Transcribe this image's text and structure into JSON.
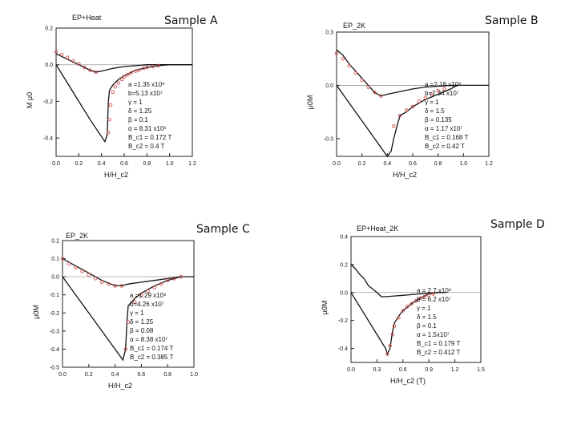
{
  "chart_data": [
    {
      "type": "line",
      "sample_label": "Sample A",
      "corner_title": "EP+Heat",
      "xlabel": "H/H_c2",
      "ylabel": "M μ0",
      "xlim": [
        0.0,
        1.2
      ],
      "ylim": [
        -0.5,
        0.2
      ],
      "xticks": [
        "0.0",
        "0.2",
        "0.4",
        "0.6",
        "0.8",
        "1.0",
        "1.2"
      ],
      "yticks": [
        "0.2",
        "0.0",
        "-0.2",
        "-0.4"
      ],
      "params": [
        "a =1.35 x10⁹",
        "b=5.13 x10⁷",
        "γ = 1",
        "δ = 1.25",
        "β = 0.1",
        "α = 8.31 x10⁶",
        "B_c1 = 0.172 T",
        "B_c2 = 0.4 T"
      ],
      "series": [
        {
          "style": "line",
          "x": [
            0.0,
            0.1,
            0.2,
            0.3,
            0.35,
            0.4,
            0.5,
            0.6,
            0.7,
            0.8,
            0.9,
            1.0,
            1.1,
            1.2
          ],
          "y": [
            0.06,
            0.03,
            0.0,
            -0.03,
            -0.04,
            -0.035,
            -0.02,
            -0.01,
            -0.005,
            0.0,
            0.0,
            0.0,
            0.0,
            0.0
          ]
        },
        {
          "style": "line",
          "x": [
            0.0,
            0.1,
            0.2,
            0.3,
            0.43,
            0.45,
            0.46,
            0.47,
            0.5,
            0.55,
            0.6,
            0.7,
            0.8,
            0.9,
            1.0,
            1.1,
            1.2
          ],
          "y": [
            0.0,
            -0.1,
            -0.2,
            -0.3,
            -0.42,
            -0.38,
            -0.2,
            -0.14,
            -0.11,
            -0.08,
            -0.06,
            -0.03,
            -0.015,
            -0.005,
            0.0,
            0.0,
            0.0
          ]
        },
        {
          "style": "markers",
          "x": [
            0.0,
            0.05,
            0.1,
            0.15,
            0.2,
            0.25,
            0.3,
            0.35,
            0.46,
            0.47,
            0.48,
            0.5,
            0.52,
            0.55,
            0.58,
            0.6,
            0.63,
            0.66,
            0.7,
            0.73,
            0.77,
            0.8,
            0.85,
            0.9
          ],
          "y": [
            0.07,
            0.055,
            0.04,
            0.02,
            0.005,
            -0.015,
            -0.03,
            -0.04,
            -0.37,
            -0.3,
            -0.22,
            -0.15,
            -0.12,
            -0.1,
            -0.08,
            -0.065,
            -0.055,
            -0.045,
            -0.035,
            -0.03,
            -0.02,
            -0.015,
            -0.01,
            -0.005
          ]
        }
      ]
    },
    {
      "type": "line",
      "sample_label": "Sample B",
      "corner_title": "EP_2K",
      "xlabel": "H/H_c2",
      "ylabel": "μ0M",
      "xlim": [
        0.0,
        1.2
      ],
      "ylim": [
        -0.4,
        0.3
      ],
      "xticks": [
        "0.0",
        "0.2",
        "0.4",
        "0.6",
        "0.8",
        "1.0",
        "1.2"
      ],
      "yticks": [
        "0.3",
        "0.0",
        "-0.3"
      ],
      "params": [
        "a =2.18 x10⁹",
        "b=7.34 x10⁷",
        "γ = 1",
        "δ = 1.5",
        "β = 0.135",
        "α = 1.17 x10⁷",
        "B_c1 = 0.168 T",
        "B_c2 = 0.42 T"
      ],
      "series": [
        {
          "style": "line",
          "x": [
            0.0,
            0.05,
            0.1,
            0.15,
            0.2,
            0.25,
            0.3,
            0.35,
            0.4,
            0.5,
            0.6,
            0.7,
            0.8,
            0.9,
            1.0,
            1.2
          ],
          "y": [
            0.2,
            0.17,
            0.12,
            0.08,
            0.04,
            0.0,
            -0.04,
            -0.06,
            -0.05,
            -0.035,
            -0.02,
            -0.01,
            -0.005,
            0.0,
            0.0,
            0.0
          ]
        },
        {
          "style": "line",
          "x": [
            0.0,
            0.1,
            0.2,
            0.3,
            0.4,
            0.43,
            0.45,
            0.48,
            0.5,
            0.55,
            0.6,
            0.7,
            0.8,
            0.9,
            0.95
          ],
          "y": [
            0.0,
            -0.1,
            -0.2,
            -0.3,
            -0.4,
            -0.37,
            -0.3,
            -0.22,
            -0.17,
            -0.15,
            -0.12,
            -0.08,
            -0.05,
            -0.02,
            0.0
          ]
        },
        {
          "style": "markers",
          "x": [
            0.0,
            0.05,
            0.1,
            0.15,
            0.2,
            0.25,
            0.3,
            0.35,
            0.45,
            0.5,
            0.55,
            0.6,
            0.65,
            0.7,
            0.75,
            0.8,
            0.85
          ],
          "y": [
            0.18,
            0.15,
            0.11,
            0.07,
            0.03,
            -0.01,
            -0.04,
            -0.06,
            -0.23,
            -0.17,
            -0.14,
            -0.12,
            -0.09,
            -0.07,
            -0.05,
            -0.03,
            -0.02
          ]
        }
      ]
    },
    {
      "type": "line",
      "sample_label": "Sample C",
      "corner_title": "EP_2K",
      "xlabel": "H/H_c2",
      "ylabel": "μ0M",
      "xlim": [
        0.0,
        1.0
      ],
      "ylim": [
        -0.5,
        0.2
      ],
      "xticks": [
        "0.0",
        "0.2",
        "0.4",
        "0.6",
        "0.8",
        "1.0"
      ],
      "yticks": [
        "0.2",
        "0.1",
        "0.0",
        "-0.1",
        "-0.2",
        "-0.3",
        "-0.4",
        "-0.5"
      ],
      "params": [
        "a =1.29 x10⁹",
        "b=4.26 x10⁷",
        "γ = 1",
        "δ = 1.25",
        "β = 0.08",
        "α = 8.38 x10⁷",
        "B_c1 = 0.174 T",
        "B_c2 = 0.385 T"
      ],
      "series": [
        {
          "style": "line",
          "x": [
            0.0,
            0.05,
            0.1,
            0.2,
            0.3,
            0.4,
            0.45,
            0.5,
            0.6,
            0.7,
            0.8,
            0.9,
            1.0
          ],
          "y": [
            0.1,
            0.08,
            0.06,
            0.02,
            -0.02,
            -0.05,
            -0.05,
            -0.04,
            -0.03,
            -0.02,
            -0.01,
            0.0,
            0.0
          ]
        },
        {
          "style": "line",
          "x": [
            0.0,
            0.1,
            0.2,
            0.3,
            0.4,
            0.46,
            0.48,
            0.49,
            0.5,
            0.55,
            0.6,
            0.7,
            0.8,
            0.85,
            0.9
          ],
          "y": [
            0.0,
            -0.1,
            -0.2,
            -0.3,
            -0.4,
            -0.46,
            -0.4,
            -0.25,
            -0.16,
            -0.12,
            -0.09,
            -0.05,
            -0.02,
            -0.01,
            0.0
          ]
        },
        {
          "style": "markers",
          "x": [
            0.0,
            0.05,
            0.1,
            0.15,
            0.2,
            0.25,
            0.3,
            0.35,
            0.4,
            0.45,
            0.48,
            0.5,
            0.55,
            0.6,
            0.65,
            0.7,
            0.75,
            0.8,
            0.85,
            0.9
          ],
          "y": [
            0.1,
            0.07,
            0.05,
            0.03,
            0.01,
            -0.01,
            -0.03,
            -0.04,
            -0.05,
            -0.05,
            -0.4,
            -0.25,
            -0.14,
            -0.1,
            -0.08,
            -0.06,
            -0.04,
            -0.02,
            -0.01,
            0.0
          ]
        }
      ]
    },
    {
      "type": "line",
      "sample_label": "Sample D",
      "corner_title": "EP+Heat_2K",
      "xlabel": "H/H_c2 (T)",
      "ylabel": "μ0M",
      "xlim": [
        0.0,
        1.5
      ],
      "ylim": [
        -0.5,
        0.4
      ],
      "xticks": [
        "0.0",
        "0.3",
        "0.6",
        "0.9",
        "1.2",
        "1.5"
      ],
      "yticks": [
        "0.4",
        "0.2",
        "0.0",
        "-0.2",
        "-0.4"
      ],
      "params": [
        "a = 2.7 x10⁹",
        "b = 6.2 x10⁷",
        "γ = 1",
        "δ = 1.5",
        "β = 0.1",
        "α = 1.5x10⁷",
        "B_c1 = 0.179 T",
        "B_c2 = 0.412 T"
      ],
      "series": [
        {
          "style": "line",
          "x": [
            0.0,
            0.05,
            0.1,
            0.15,
            0.2,
            0.3,
            0.35,
            0.4,
            0.5,
            0.6,
            0.7,
            0.8,
            0.9,
            1.0,
            1.1
          ],
          "y": [
            0.2,
            0.17,
            0.13,
            0.1,
            0.05,
            0.0,
            -0.03,
            -0.03,
            -0.025,
            -0.02,
            -0.015,
            -0.01,
            -0.005,
            0.0,
            0.0
          ]
        },
        {
          "style": "line",
          "x": [
            0.0,
            0.1,
            0.2,
            0.3,
            0.4,
            0.42,
            0.45,
            0.48,
            0.5,
            0.55,
            0.6,
            0.7,
            0.8,
            0.9,
            1.0
          ],
          "y": [
            0.0,
            -0.1,
            -0.2,
            -0.3,
            -0.4,
            -0.44,
            -0.4,
            -0.28,
            -0.22,
            -0.17,
            -0.13,
            -0.08,
            -0.04,
            -0.01,
            0.0
          ]
        },
        {
          "style": "markers",
          "x": [
            0.42,
            0.45,
            0.48,
            0.5,
            0.55,
            0.6,
            0.65,
            0.7,
            0.75,
            0.8,
            0.85,
            0.9,
            0.95
          ],
          "y": [
            -0.44,
            -0.38,
            -0.3,
            -0.24,
            -0.18,
            -0.13,
            -0.1,
            -0.08,
            -0.06,
            -0.04,
            -0.03,
            -0.02,
            -0.01
          ]
        }
      ]
    }
  ]
}
